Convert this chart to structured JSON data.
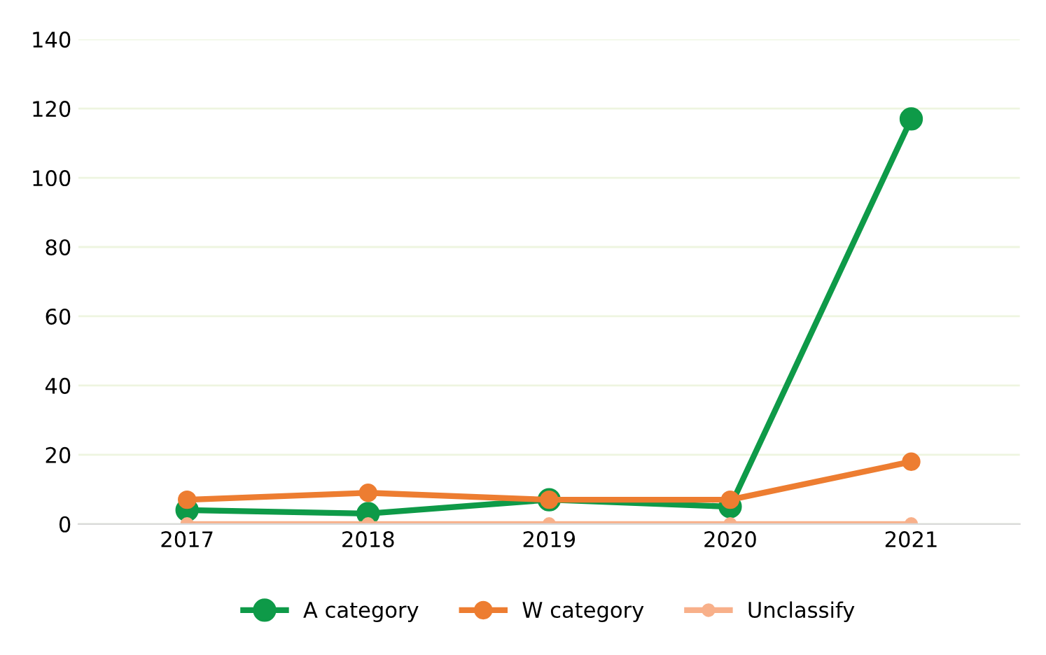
{
  "chart_data": {
    "type": "line",
    "categories": [
      "2017",
      "2018",
      "2019",
      "2020",
      "2021"
    ],
    "series": [
      {
        "name": "A category",
        "color": "#0e9a48",
        "values": [
          4,
          3,
          7,
          5,
          117
        ]
      },
      {
        "name": "W category",
        "color": "#ed7d31",
        "values": [
          7,
          9,
          7,
          7,
          18
        ]
      },
      {
        "name": "Unclassify",
        "color": "#f8b08a",
        "values": [
          0,
          0,
          0,
          0,
          0
        ]
      }
    ],
    "ylim": [
      0,
      140
    ],
    "yticks": [
      0,
      20,
      40,
      60,
      80,
      100,
      120,
      140
    ],
    "grid": "y",
    "legend": "bottom",
    "marker": "circle",
    "line_style": "solid"
  }
}
